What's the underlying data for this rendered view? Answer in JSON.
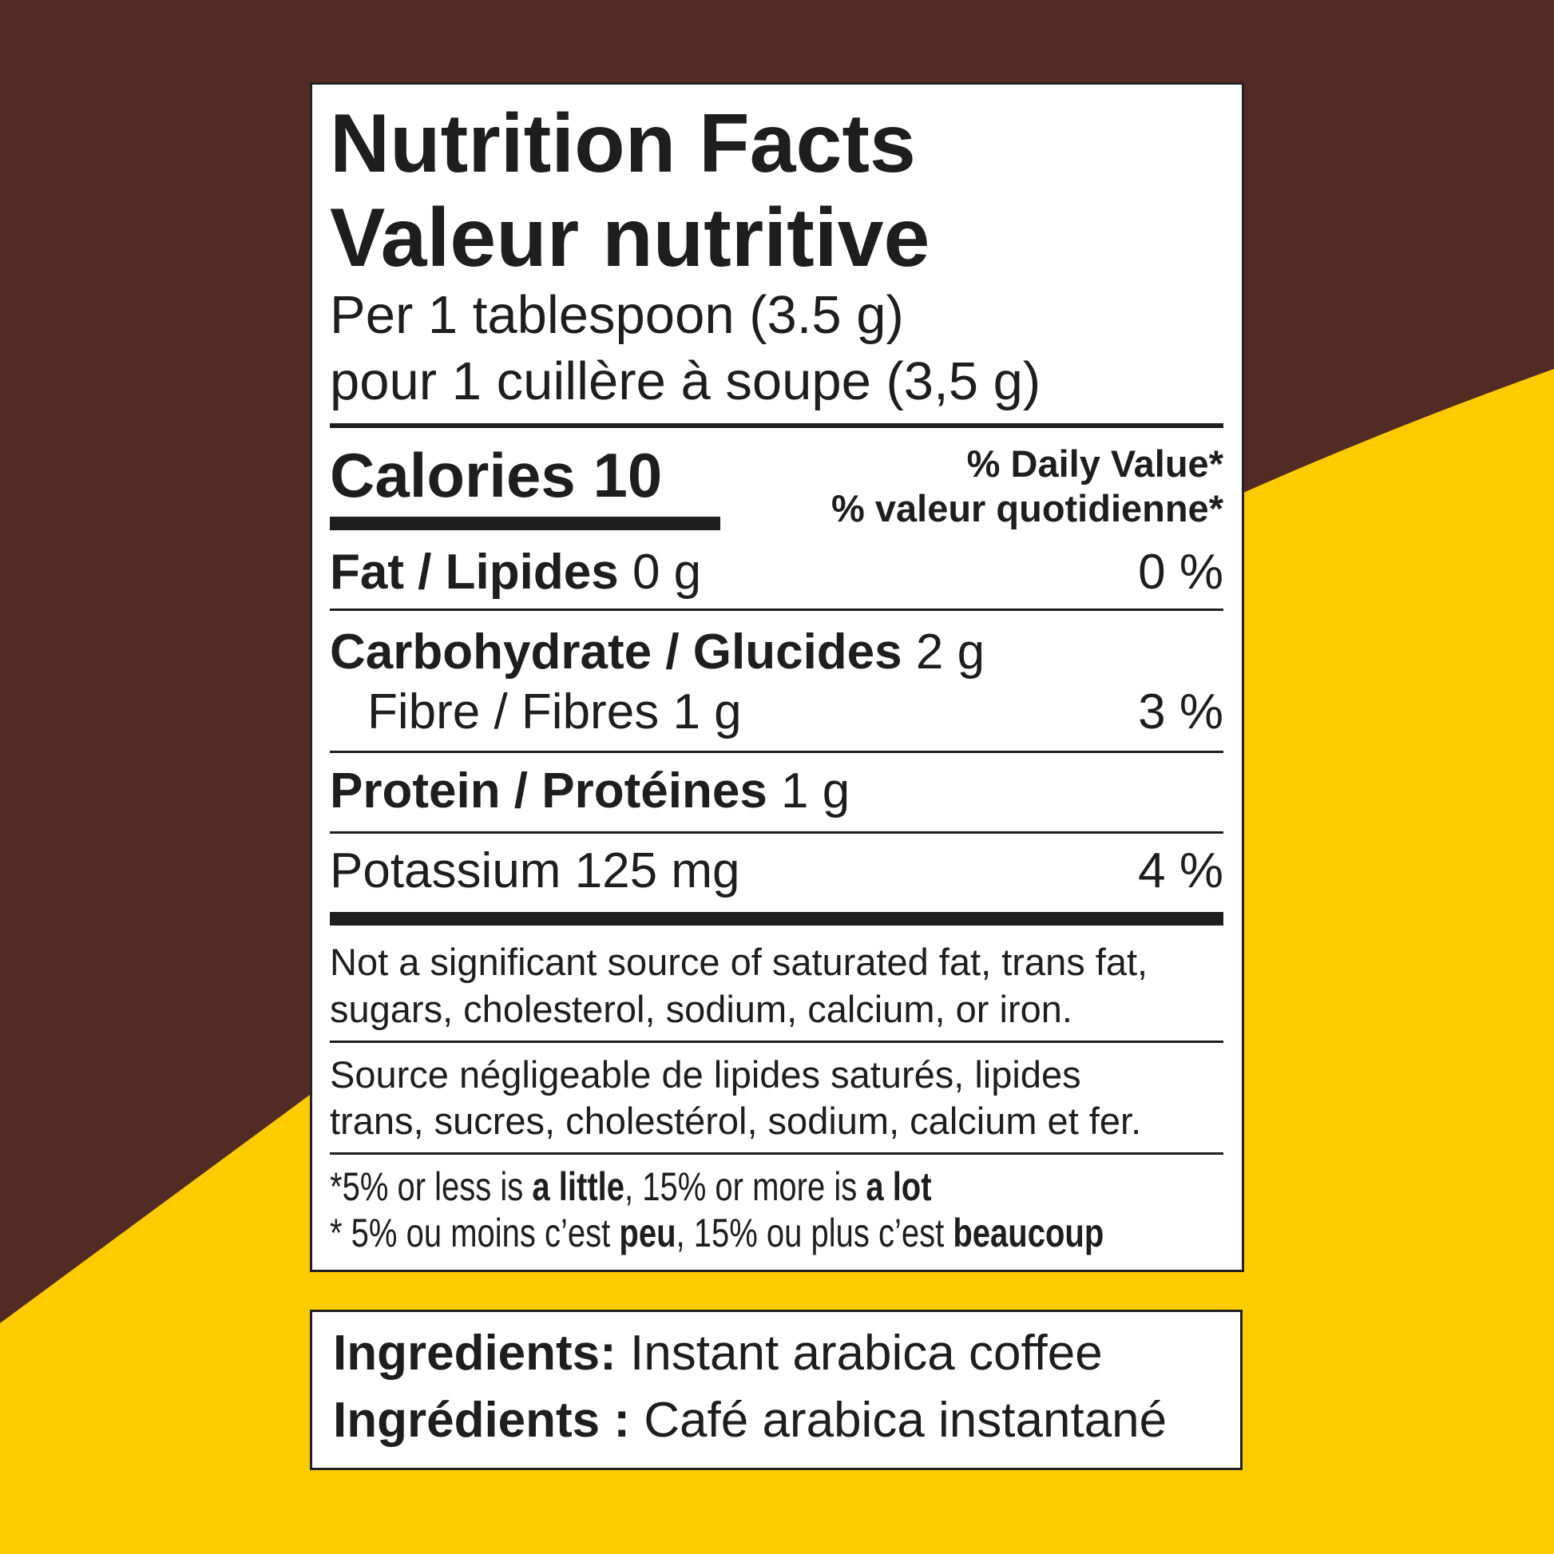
{
  "colors": {
    "background_dark": "#522c24",
    "background_accent": "#fecb00"
  },
  "label": {
    "title_en": "Nutrition Facts",
    "title_fr": "Valeur nutritive",
    "serving_en": "Per 1 tablespoon (3.5 g)",
    "serving_fr": "pour 1 cuillère à soupe (3,5 g)",
    "calories": "Calories 10",
    "dv_en": "% Daily Value*",
    "dv_fr": "% valeur quotidienne*",
    "nutrients": [
      {
        "name": "Fat / Lipides",
        "amount": "0 g",
        "dv": "0 %"
      },
      {
        "name": "Carbohydrate / Glucides",
        "amount": "2 g",
        "dv": ""
      },
      {
        "name": "Fibre / Fibres",
        "amount": "1 g",
        "dv": "3 %"
      },
      {
        "name": "Protein / Protéines",
        "amount": "1 g",
        "dv": ""
      },
      {
        "name": "Potassium",
        "amount": "125 mg",
        "dv": "4 %"
      }
    ],
    "note_en_1": "Not a significant source of saturated fat, trans fat,",
    "note_en_2": "sugars, cholesterol, sodium, calcium, or iron.",
    "note_fr_1": "Source négligeable de lipides saturés, lipides",
    "note_fr_2": "trans, sucres, cholestérol, sodium, calcium et fer.",
    "foot_en": {
      "a": "*5% or less is ",
      "b": "a little",
      "c": ", 15% or more is ",
      "d": "a lot"
    },
    "foot_fr": {
      "a": "* 5% ou moins c’est ",
      "b": "peu",
      "c": ", 15% ou plus c’est ",
      "d": "beaucoup"
    }
  },
  "ingredients": {
    "label_en": "Ingredients:",
    "text_en": "Instant arabica coffee",
    "label_fr": "Ingrédients :",
    "text_fr": "Café arabica instantané"
  }
}
